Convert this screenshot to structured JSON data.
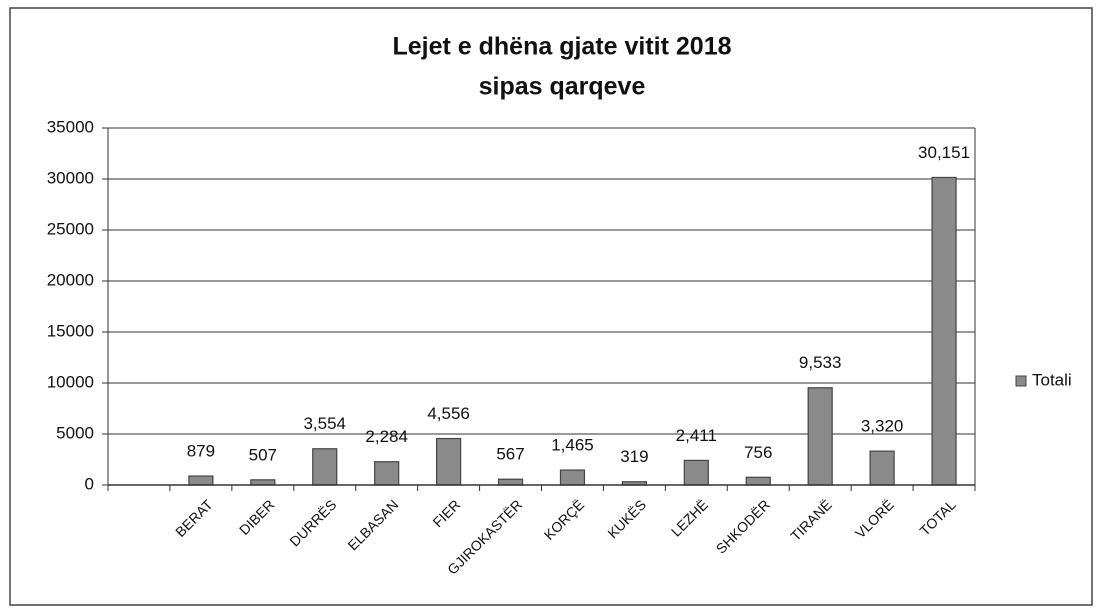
{
  "chart_data": {
    "type": "bar",
    "title": "Lejet e dhëna  gjate vitit  2018",
    "subtitle": "sipas qarqeve",
    "categories": [
      null,
      "BERAT",
      "DIBER",
      "DURRËS",
      "ELBASAN",
      "FIER",
      "GJIROKASTËR",
      "KORÇË",
      "KUKËS",
      "LEZHË",
      "SHKODËR",
      "TIRANË",
      "VLORË",
      "TOTAL"
    ],
    "series": [
      {
        "name": "Totali",
        "color": "#8a8a8a",
        "values": [
          null,
          879,
          507,
          3554,
          2284,
          4556,
          567,
          1465,
          319,
          2411,
          756,
          9533,
          3320,
          30151
        ],
        "value_labels": [
          null,
          "879",
          "507",
          "3,554",
          "2,284",
          "4,556",
          "567",
          "1,465",
          "319",
          "2,411",
          "756",
          "9,533",
          "3,320",
          "30,151"
        ]
      }
    ],
    "ylim": [
      0,
      35000
    ],
    "yticks": [
      0,
      5000,
      10000,
      15000,
      20000,
      25000,
      30000,
      35000
    ],
    "grid": true,
    "legend": "right"
  }
}
